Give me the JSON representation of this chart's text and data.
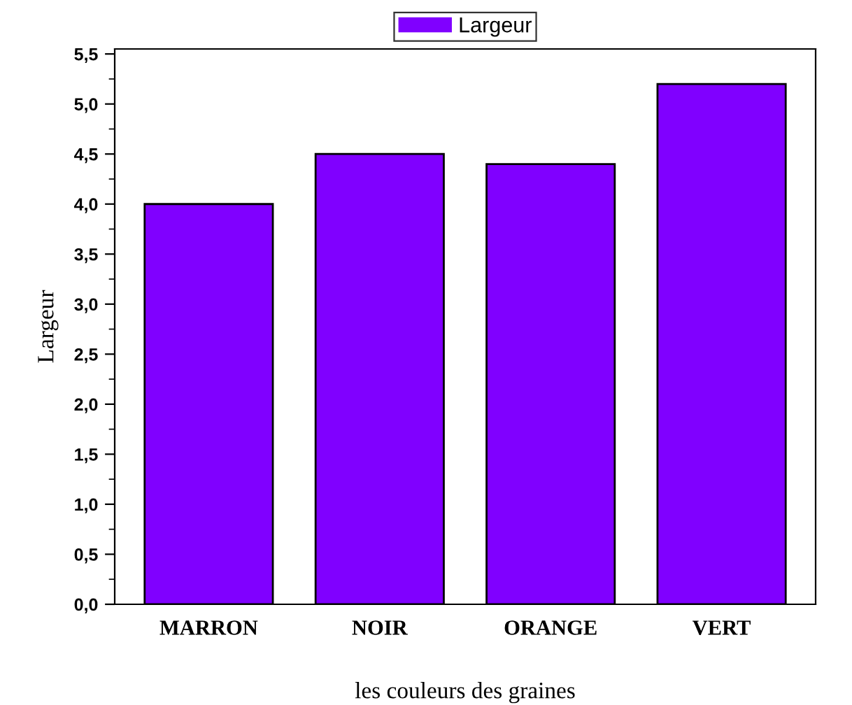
{
  "chart_data": {
    "type": "bar",
    "xlabel": "les couleurs des graines",
    "ylabel": "Largeur",
    "categories": [
      "MARRON",
      "NOIR",
      "ORANGE",
      "VERT"
    ],
    "series": [
      {
        "name": "Largeur",
        "color": "#8000ff",
        "values": [
          4.0,
          4.5,
          4.4,
          5.2
        ]
      }
    ],
    "ylim": [
      0,
      5.55
    ],
    "yticks": [
      {
        "value": 0,
        "label": "0,0"
      },
      {
        "value": 0.5,
        "label": "0,5"
      },
      {
        "value": 1,
        "label": "1,0"
      },
      {
        "value": 1.5,
        "label": "1,5"
      },
      {
        "value": 2,
        "label": "2,0"
      },
      {
        "value": 2.5,
        "label": "2,5"
      },
      {
        "value": 3,
        "label": "3,0"
      },
      {
        "value": 3.5,
        "label": "3,5"
      },
      {
        "value": 4,
        "label": "4,0"
      },
      {
        "value": 4.5,
        "label": "4,5"
      },
      {
        "value": 5,
        "label": "5,0"
      },
      {
        "value": 5.5,
        "label": "5,5"
      }
    ],
    "legend": "top",
    "grid": false
  }
}
